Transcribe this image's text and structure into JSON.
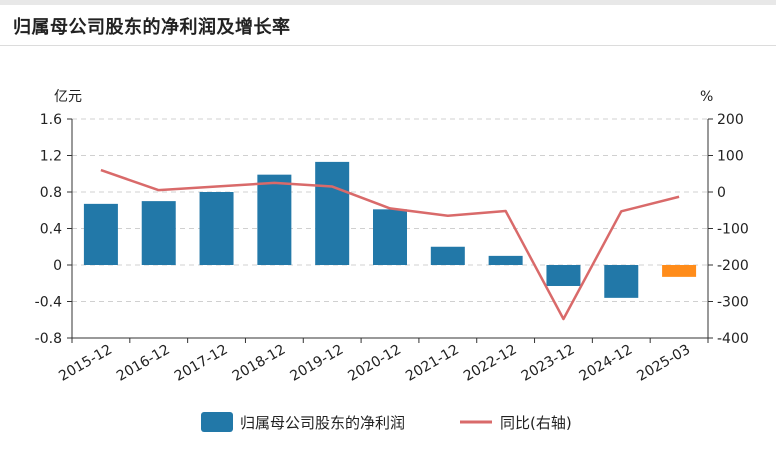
{
  "title": "归属母公司股东的净利润及增长率",
  "chart_data": {
    "type": "bar",
    "categories": [
      "2015-12",
      "2016-12",
      "2017-12",
      "2018-12",
      "2019-12",
      "2020-12",
      "2021-12",
      "2022-12",
      "2023-12",
      "2024-12",
      "2025-03"
    ],
    "left_unit": "亿元",
    "right_unit": "%",
    "left_ylim": [
      -0.8,
      1.6
    ],
    "left_ticks": [
      "1.6",
      "1.2",
      "0.8",
      "0.4",
      "0",
      "-0.4",
      "-0.8"
    ],
    "left_tick_values": [
      1.6,
      1.2,
      0.8,
      0.4,
      0,
      -0.4,
      -0.8
    ],
    "right_ylim": [
      -400,
      200
    ],
    "right_ticks": [
      "200",
      "100",
      "0",
      "-100",
      "-200",
      "-300",
      "-400"
    ],
    "right_tick_values": [
      200,
      100,
      0,
      -100,
      -200,
      -300,
      -400
    ],
    "grid": true,
    "legend_position": "bottom",
    "series": [
      {
        "name": "归属母公司股东的净利润",
        "kind": "bar",
        "color": "#2278a8",
        "highlight_color": "#ff8c1a",
        "highlight_last": true,
        "values": [
          0.67,
          0.7,
          0.8,
          0.99,
          1.13,
          0.61,
          0.2,
          0.1,
          -0.23,
          -0.36,
          -0.13
        ]
      },
      {
        "name": "同比(右轴)",
        "kind": "line",
        "color": "#d96a6a",
        "values": [
          60,
          5,
          15,
          25,
          15,
          -45,
          -65,
          -52,
          -348,
          -53,
          -13
        ]
      }
    ]
  }
}
